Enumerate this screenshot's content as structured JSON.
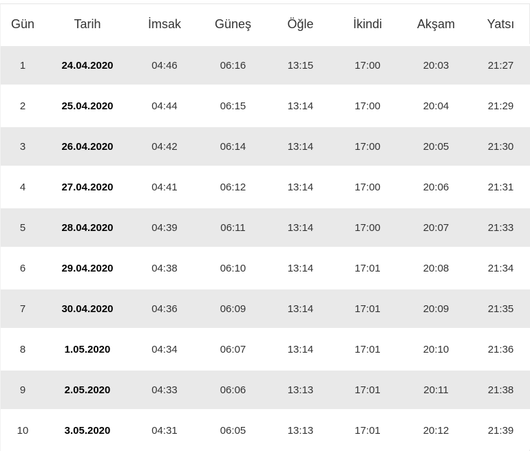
{
  "table": {
    "columns": [
      "Gün",
      "Tarih",
      "İmsak",
      "Güneş",
      "Öğle",
      "İkindi",
      "Akşam",
      "Yatsı"
    ],
    "rows": [
      [
        "1",
        "24.04.2020",
        "04:46",
        "06:16",
        "13:15",
        "17:00",
        "20:03",
        "21:27"
      ],
      [
        "2",
        "25.04.2020",
        "04:44",
        "06:15",
        "13:14",
        "17:00",
        "20:04",
        "21:29"
      ],
      [
        "3",
        "26.04.2020",
        "04:42",
        "06:14",
        "13:14",
        "17:00",
        "20:05",
        "21:30"
      ],
      [
        "4",
        "27.04.2020",
        "04:41",
        "06:12",
        "13:14",
        "17:00",
        "20:06",
        "21:31"
      ],
      [
        "5",
        "28.04.2020",
        "04:39",
        "06:11",
        "13:14",
        "17:00",
        "20:07",
        "21:33"
      ],
      [
        "6",
        "29.04.2020",
        "04:38",
        "06:10",
        "13:14",
        "17:01",
        "20:08",
        "21:34"
      ],
      [
        "7",
        "30.04.2020",
        "04:36",
        "06:09",
        "13:14",
        "17:01",
        "20:09",
        "21:35"
      ],
      [
        "8",
        "1.05.2020",
        "04:34",
        "06:07",
        "13:14",
        "17:01",
        "20:10",
        "21:36"
      ],
      [
        "9",
        "2.05.2020",
        "04:33",
        "06:06",
        "13:13",
        "17:01",
        "20:11",
        "21:38"
      ],
      [
        "10",
        "3.05.2020",
        "04:31",
        "06:05",
        "13:13",
        "17:01",
        "20:12",
        "21:39"
      ]
    ]
  },
  "colors": {
    "stripe_row_background": "#e9e9e9",
    "row_background": "#ffffff",
    "header_text": "#333333",
    "cell_text": "#333333",
    "date_text": "#000000",
    "top_border": "#e5e5e5"
  }
}
